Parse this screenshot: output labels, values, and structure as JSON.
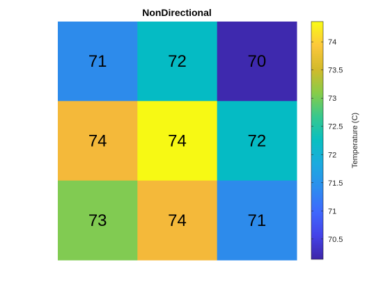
{
  "chart_data": {
    "type": "heatmap",
    "title": "NonDirectional",
    "rows": 3,
    "cols": 3,
    "values": [
      [
        71,
        72,
        70
      ],
      [
        74,
        74,
        72
      ],
      [
        73,
        74,
        71
      ]
    ],
    "colorbar": {
      "label": "Temperature (C)",
      "min": 70.14,
      "max": 74.36,
      "ticks": [
        "70.5",
        "71",
        "71.5",
        "72",
        "72.5",
        "73",
        "73.5",
        "74"
      ],
      "colormap": [
        "#3E26A8",
        "#4543E8",
        "#3F68FD",
        "#2D8DEF",
        "#1CAADF",
        "#09BFC1",
        "#37C88E",
        "#88CC48",
        "#D3BA2B",
        "#FCC83B",
        "#F9FB15"
      ]
    },
    "cell_colors": [
      [
        "#2D8BEB",
        "#05BBC4",
        "#3E29AE"
      ],
      [
        "#F4B93A",
        "#F7F914",
        "#05BBC4"
      ],
      [
        "#81CB52",
        "#F4B93A",
        "#2D8BEB"
      ]
    ]
  }
}
